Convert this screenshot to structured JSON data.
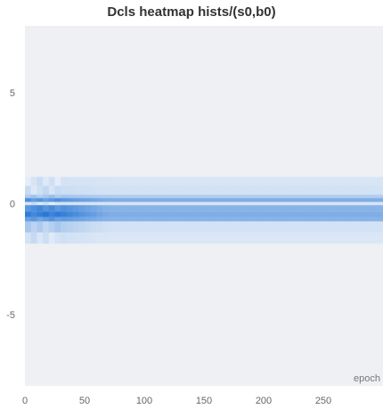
{
  "chart_data": {
    "type": "heatmap",
    "title": "Dcls heatmap hists/(s0,b0)",
    "xlabel": "epoch",
    "ylabel": "",
    "xlim": [
      0,
      300
    ],
    "ylim": [
      -8.2,
      8.0
    ],
    "x_ticks": [
      0,
      50,
      100,
      150,
      200,
      250
    ],
    "y_ticks": [
      5,
      0,
      -5
    ],
    "y_tick_labels": [
      "5",
      "0",
      "-5"
    ],
    "background_color": "#eef0f3",
    "colors": {
      "low": "#e6eef8",
      "high": "#2a78d6"
    },
    "bins": [
      {
        "y0": 1.2,
        "y1": 0.8,
        "early": 0.1,
        "late": 0.08
      },
      {
        "y0": 0.8,
        "y1": 0.4,
        "early": 0.14,
        "late": 0.1
      },
      {
        "y0": 0.4,
        "y1": 0.25,
        "early": 0.35,
        "late": 0.28
      },
      {
        "y0": 0.25,
        "y1": 0.07,
        "early": 0.75,
        "late": 0.55
      },
      {
        "y0": 0.07,
        "y1": -0.07,
        "early": 0.1,
        "late": 0.08
      },
      {
        "y0": -0.07,
        "y1": -0.35,
        "early": 0.82,
        "late": 0.5
      },
      {
        "y0": -0.35,
        "y1": -0.6,
        "early": 0.95,
        "late": 0.55
      },
      {
        "y0": -0.6,
        "y1": -0.8,
        "early": 0.72,
        "late": 0.5
      },
      {
        "y0": -0.8,
        "y1": -1.3,
        "early": 0.28,
        "late": 0.1
      },
      {
        "y0": -1.3,
        "y1": -1.8,
        "early": 0.12,
        "late": 0.06
      }
    ]
  }
}
